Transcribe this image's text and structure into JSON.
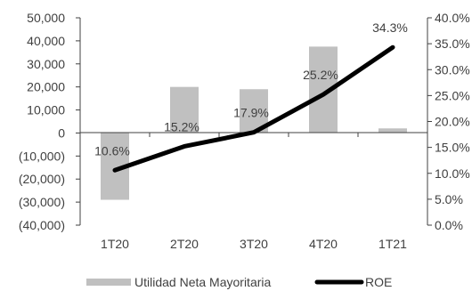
{
  "chart_data": {
    "type": "bar",
    "categories": [
      "1T20",
      "2T20",
      "3T20",
      "4T20",
      "1T21"
    ],
    "series": [
      {
        "name": "Utilidad Neta Mayoritaria",
        "type": "bar",
        "axis": "left",
        "values": [
          -29000,
          20000,
          19000,
          37500,
          2000
        ]
      },
      {
        "name": "ROE",
        "type": "line",
        "axis": "right",
        "values": [
          10.6,
          15.2,
          17.9,
          25.2,
          34.3
        ],
        "data_labels": [
          "10.6%",
          "15.2%",
          "17.9%",
          "25.2%",
          "34.3%"
        ]
      }
    ],
    "y_left": {
      "ylim": [
        -40000,
        50000
      ],
      "ticks": [
        50000,
        40000,
        30000,
        20000,
        10000,
        0,
        -10000,
        -20000,
        -30000,
        -40000
      ],
      "tick_labels": [
        "50,000",
        "40,000",
        "30,000",
        "20,000",
        "10,000",
        "0",
        "(10,000)",
        "(20,000)",
        "(30,000)",
        "(40,000)"
      ]
    },
    "y_right": {
      "ylim": [
        0,
        40
      ],
      "ticks": [
        40,
        35,
        30,
        25,
        20,
        15,
        10,
        5,
        0
      ],
      "tick_labels": [
        "40.0%",
        "35.0%",
        "30.0%",
        "25.0%",
        "20.0%",
        "15.0%",
        "10.0%",
        "5.0%",
        "0.0%"
      ]
    },
    "colors": {
      "bar": "#c0c0c0",
      "line": "#000000",
      "axis": "#404040",
      "text": "#404040"
    },
    "grid": false,
    "legend_position": "bottom"
  }
}
